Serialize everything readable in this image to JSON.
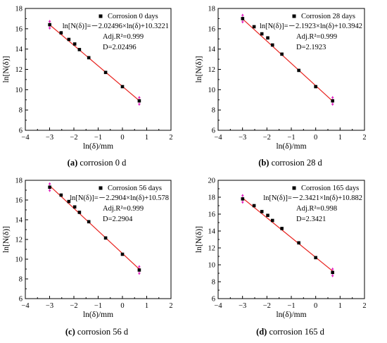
{
  "chart_data": [
    {
      "type": "scatter",
      "panel_letter": "(a)",
      "caption": "corrosion 0 d",
      "xlabel": "ln(δ)/mm",
      "ylabel": "ln[N(δ)]",
      "xlim": [
        -4,
        2
      ],
      "ylim": [
        6,
        18
      ],
      "xticks": [
        -4,
        -3,
        -2,
        -1,
        0,
        1,
        2
      ],
      "yticks": [
        6,
        8,
        10,
        12,
        14,
        16,
        18
      ],
      "grid": false,
      "legend_position": "top-right",
      "series": [
        {
          "name": "Corrosion 0 days",
          "marker": "square",
          "color": "#000000",
          "x": [
            -2.996,
            -2.526,
            -2.207,
            -1.966,
            -1.772,
            -1.386,
            -0.693,
            0,
            0.693
          ],
          "y": [
            16.4,
            15.6,
            14.95,
            14.5,
            13.95,
            13.15,
            11.7,
            10.3,
            8.9
          ]
        },
        {
          "name": "fit",
          "type": "line",
          "color": "#e8231f",
          "slope": -2.02496,
          "intercept": 10.3221,
          "x_range": [
            -3,
            0.7
          ]
        }
      ],
      "error_markers_color": "#e020c0",
      "annotations": [
        "ln[N(δ)]=－2.02496×ln(δ)+10.3221",
        "Adj.R²=0.999",
        "D=2.02496"
      ]
    },
    {
      "type": "scatter",
      "panel_letter": "(b)",
      "caption": "corrosion 28 d",
      "xlabel": "ln(δ)/mm",
      "ylabel": "ln[N(δ)]",
      "xlim": [
        -4,
        2
      ],
      "ylim": [
        6,
        18
      ],
      "xticks": [
        -4,
        -3,
        -2,
        -1,
        0,
        1,
        2
      ],
      "yticks": [
        6,
        8,
        10,
        12,
        14,
        16,
        18
      ],
      "grid": false,
      "legend_position": "top-right",
      "series": [
        {
          "name": "Corrosion 28 days",
          "marker": "square",
          "color": "#000000",
          "x": [
            -2.996,
            -2.526,
            -2.207,
            -1.966,
            -1.772,
            -1.386,
            -0.693,
            0,
            0.693
          ],
          "y": [
            17.0,
            16.2,
            15.5,
            15.1,
            14.4,
            13.5,
            11.9,
            10.3,
            8.9
          ]
        },
        {
          "name": "fit",
          "type": "line",
          "color": "#e8231f",
          "slope": -2.1923,
          "intercept": 10.3942,
          "x_range": [
            -3,
            0.7
          ]
        }
      ],
      "error_markers_color": "#e020c0",
      "annotations": [
        "ln[N(δ)]=－2.1923×ln(δ)+10.3942",
        "Adj.R²=0.999",
        "D=2.1923"
      ]
    },
    {
      "type": "scatter",
      "panel_letter": "(c)",
      "caption": "corrosion 56 d",
      "xlabel": "ln(δ)/mm",
      "ylabel": "ln[N(δ)]",
      "xlim": [
        -4,
        2
      ],
      "ylim": [
        6,
        18
      ],
      "xticks": [
        -4,
        -3,
        -2,
        -1,
        0,
        1,
        2
      ],
      "yticks": [
        6,
        8,
        10,
        12,
        14,
        16,
        18
      ],
      "grid": false,
      "legend_position": "top-right",
      "series": [
        {
          "name": "Corrosion 56 days",
          "marker": "square",
          "color": "#000000",
          "x": [
            -2.996,
            -2.526,
            -2.207,
            -1.966,
            -1.772,
            -1.386,
            -0.693,
            0,
            0.693
          ],
          "y": [
            17.3,
            16.5,
            15.85,
            15.3,
            14.75,
            13.8,
            12.15,
            10.5,
            8.9
          ]
        },
        {
          "name": "fit",
          "type": "line",
          "color": "#e8231f",
          "slope": -2.2904,
          "intercept": 10.578,
          "x_range": [
            -3,
            0.7
          ]
        }
      ],
      "error_markers_color": "#e020c0",
      "annotations": [
        "ln[N(δ)]=－2.2904×ln(δ)+10.578",
        "Adj.R²=0.999",
        "D=2.2904"
      ]
    },
    {
      "type": "scatter",
      "panel_letter": "(d)",
      "caption": "corrosion 165 d",
      "xlabel": "ln(δ)/mm",
      "ylabel": "ln[N(δ)]",
      "xlim": [
        -4,
        2
      ],
      "ylim": [
        6,
        20
      ],
      "xticks": [
        -4,
        -3,
        -2,
        -1,
        0,
        1,
        2
      ],
      "yticks": [
        6,
        8,
        10,
        12,
        14,
        16,
        18,
        20
      ],
      "grid": false,
      "legend_position": "top-right",
      "series": [
        {
          "name": "Corrosion 165 days",
          "marker": "square",
          "color": "#000000",
          "x": [
            -2.996,
            -2.526,
            -2.207,
            -1.966,
            -1.772,
            -1.386,
            -0.693,
            0,
            0.693
          ],
          "y": [
            17.8,
            17.0,
            16.3,
            15.85,
            15.25,
            14.3,
            12.6,
            10.85,
            9.1
          ]
        },
        {
          "name": "fit",
          "type": "line",
          "color": "#e8231f",
          "slope": -2.3421,
          "intercept": 10.882,
          "x_range": [
            -3,
            0.7
          ]
        }
      ],
      "error_markers_color": "#e020c0",
      "annotations": [
        "ln[N(δ)]=－2.3421×ln(δ)+10.882",
        "Adj.R²=0.998",
        "D=2.3421"
      ]
    }
  ]
}
